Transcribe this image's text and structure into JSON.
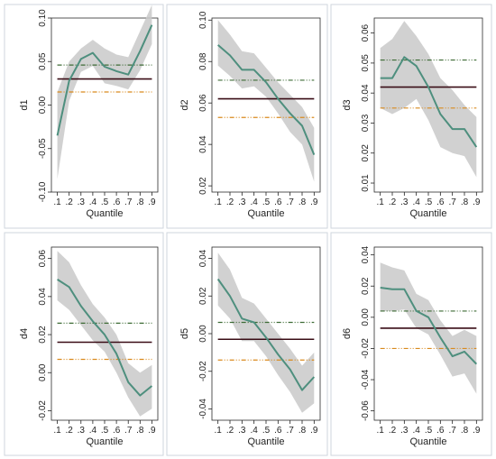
{
  "chart_data": [
    {
      "type": "line",
      "ylabel": "d1",
      "xlabel": "Quantile",
      "x": [
        0.1,
        0.2,
        0.3,
        0.4,
        0.5,
        0.6,
        0.7,
        0.8,
        0.9
      ],
      "x_tick_labels": [
        ".1",
        ".2",
        ".3",
        ".4",
        ".5",
        ".6",
        ".7",
        ".8",
        ".9"
      ],
      "ylim": [
        -0.1,
        0.1
      ],
      "yticks": [
        -0.1,
        -0.05,
        0,
        0.05,
        0.1
      ],
      "y_tick_labels": [
        "-0.10",
        "-0.05",
        "0.00",
        "0.05",
        "0.10"
      ],
      "series": [
        {
          "values": [
            -0.035,
            0.028,
            0.053,
            0.06,
            0.044,
            0.039,
            0.035,
            0.062,
            0.092
          ]
        }
      ],
      "band_upper": [
        0.015,
        0.05,
        0.065,
        0.075,
        0.065,
        0.058,
        0.055,
        0.085,
        0.115
      ],
      "band_lower": [
        -0.085,
        0.005,
        0.038,
        0.045,
        0.025,
        0.022,
        0.018,
        0.04,
        0.07
      ],
      "ols": 0.03,
      "ols_ci": [
        0.015,
        0.046
      ]
    },
    {
      "type": "line",
      "ylabel": "d2",
      "xlabel": "Quantile",
      "x": [
        0.1,
        0.2,
        0.3,
        0.4,
        0.5,
        0.6,
        0.7,
        0.8,
        0.9
      ],
      "x_tick_labels": [
        ".1",
        ".2",
        ".3",
        ".4",
        ".5",
        ".6",
        ".7",
        ".8",
        ".9"
      ],
      "ylim": [
        0.017,
        0.101
      ],
      "yticks": [
        0.02,
        0.04,
        0.06,
        0.08,
        0.1
      ],
      "y_tick_labels": [
        "0.02",
        "0.04",
        "0.06",
        "0.08",
        "0.10"
      ],
      "series": [
        {
          "values": [
            0.088,
            0.083,
            0.076,
            0.076,
            0.07,
            0.062,
            0.055,
            0.049,
            0.035
          ]
        }
      ],
      "band_upper": [
        0.1,
        0.093,
        0.085,
        0.084,
        0.077,
        0.07,
        0.064,
        0.058,
        0.048
      ],
      "band_lower": [
        0.078,
        0.073,
        0.067,
        0.068,
        0.063,
        0.055,
        0.046,
        0.04,
        0.022
      ],
      "ols": 0.062,
      "ols_ci": [
        0.053,
        0.071
      ]
    },
    {
      "type": "line",
      "ylabel": "d3",
      "xlabel": "Quantile",
      "x": [
        0.1,
        0.2,
        0.3,
        0.4,
        0.5,
        0.6,
        0.7,
        0.8,
        0.9
      ],
      "x_tick_labels": [
        ".1",
        ".2",
        ".3",
        ".4",
        ".5",
        ".6",
        ".7",
        ".8",
        ".9"
      ],
      "ylim": [
        0.007,
        0.065
      ],
      "yticks": [
        0.01,
        0.02,
        0.03,
        0.04,
        0.05,
        0.06
      ],
      "y_tick_labels": [
        "0.01",
        "0.02",
        "0.03",
        "0.04",
        "0.05",
        "0.06"
      ],
      "series": [
        {
          "values": [
            0.045,
            0.045,
            0.052,
            0.049,
            0.042,
            0.033,
            0.028,
            0.028,
            0.022
          ]
        }
      ],
      "band_upper": [
        0.055,
        0.058,
        0.064,
        0.059,
        0.053,
        0.045,
        0.041,
        0.036,
        0.032
      ],
      "band_lower": [
        0.035,
        0.033,
        0.035,
        0.038,
        0.031,
        0.022,
        0.02,
        0.019,
        0.012
      ],
      "ols": 0.042,
      "ols_ci": [
        0.035,
        0.051
      ]
    },
    {
      "type": "line",
      "ylabel": "d4",
      "xlabel": "Quantile",
      "x": [
        0.1,
        0.2,
        0.3,
        0.4,
        0.5,
        0.6,
        0.7,
        0.8,
        0.9
      ],
      "x_tick_labels": [
        ".1",
        ".2",
        ".3",
        ".4",
        ".5",
        ".6",
        ".7",
        ".8",
        ".9"
      ],
      "ylim": [
        -0.025,
        0.066
      ],
      "yticks": [
        -0.02,
        0,
        0.02,
        0.04,
        0.06
      ],
      "y_tick_labels": [
        "-0.02",
        "0.00",
        "0.02",
        "0.04",
        "0.06"
      ],
      "series": [
        {
          "values": [
            0.049,
            0.045,
            0.035,
            0.027,
            0.02,
            0.01,
            -0.005,
            -0.012,
            -0.007
          ]
        }
      ],
      "band_upper": [
        0.064,
        0.058,
        0.046,
        0.036,
        0.029,
        0.02,
        0.005,
        0.0,
        0.004
      ],
      "band_lower": [
        0.038,
        0.033,
        0.025,
        0.017,
        0.011,
        0.0,
        -0.013,
        -0.023,
        -0.019
      ],
      "ols": 0.016,
      "ols_ci": [
        0.007,
        0.026
      ]
    },
    {
      "type": "line",
      "ylabel": "d5",
      "xlabel": "Quantile",
      "x": [
        0.1,
        0.2,
        0.3,
        0.4,
        0.5,
        0.6,
        0.7,
        0.8,
        0.9
      ],
      "x_tick_labels": [
        ".1",
        ".2",
        ".3",
        ".4",
        ".5",
        ".6",
        ".7",
        ".8",
        ".9"
      ],
      "ylim": [
        -0.046,
        0.046
      ],
      "yticks": [
        -0.04,
        -0.02,
        0,
        0.02,
        0.04
      ],
      "y_tick_labels": [
        "-0.04",
        "-0.02",
        "0.00",
        "0.02",
        "0.04"
      ],
      "series": [
        {
          "values": [
            0.029,
            0.02,
            0.008,
            0.006,
            -0.002,
            -0.011,
            -0.019,
            -0.03,
            -0.023
          ]
        }
      ],
      "band_upper": [
        0.043,
        0.034,
        0.019,
        0.016,
        0.008,
        0.0,
        -0.008,
        -0.017,
        -0.01
      ],
      "band_lower": [
        0.015,
        0.008,
        -0.004,
        -0.004,
        -0.012,
        -0.022,
        -0.031,
        -0.042,
        -0.037
      ],
      "ols": -0.003,
      "ols_ci": [
        -0.014,
        0.006
      ]
    },
    {
      "type": "line",
      "ylabel": "d6",
      "xlabel": "Quantile",
      "x": [
        0.1,
        0.2,
        0.3,
        0.4,
        0.5,
        0.6,
        0.7,
        0.8,
        0.9
      ],
      "x_tick_labels": [
        ".1",
        ".2",
        ".3",
        ".4",
        ".5",
        ".6",
        ".7",
        ".8",
        ".9"
      ],
      "ylim": [
        -0.066,
        0.045
      ],
      "yticks": [
        -0.06,
        -0.04,
        -0.02,
        0,
        0.02,
        0.04
      ],
      "y_tick_labels": [
        "-0.06",
        "-0.04",
        "-0.02",
        "0.00",
        "0.02",
        "0.04"
      ],
      "series": [
        {
          "values": [
            0.019,
            0.018,
            0.018,
            0.004,
            0.0,
            -0.013,
            -0.025,
            -0.022,
            -0.03
          ]
        }
      ],
      "band_upper": [
        0.035,
        0.032,
        0.03,
        0.015,
        0.011,
        -0.002,
        -0.012,
        -0.008,
        -0.012
      ],
      "band_lower": [
        0.004,
        0.004,
        0.005,
        -0.007,
        -0.011,
        -0.024,
        -0.038,
        -0.036,
        -0.049
      ],
      "ols": -0.007,
      "ols_ci": [
        -0.02,
        0.004
      ]
    }
  ]
}
